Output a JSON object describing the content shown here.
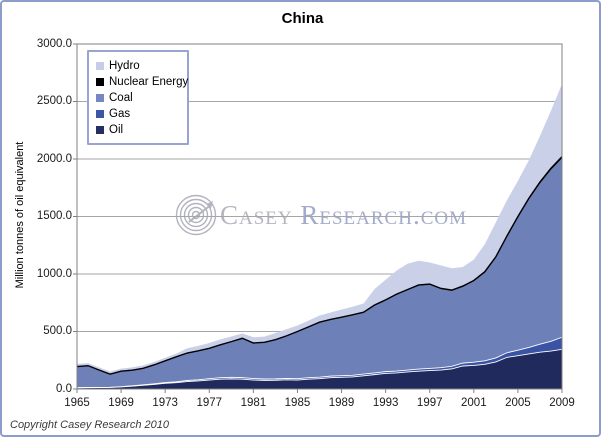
{
  "figure": {
    "title": "China",
    "y_axis_title": "Million tonnes of oil equivalent",
    "copyright": "Copyright Casey Research 2010",
    "watermark": {
      "brand_first": "Casey",
      "brand_rest": "Research.com"
    },
    "border_color": "#8e9cca"
  },
  "chart_data": {
    "type": "area",
    "stacked": true,
    "title": "China",
    "xlabel": "",
    "ylabel": "Million tonnes of oil equivalent",
    "ylim": [
      0,
      3000
    ],
    "ytick_step": 500,
    "ytick_labels": [
      "3000.0",
      "2500.0",
      "2000.0",
      "1500.0",
      "1000.0",
      "500.0",
      "0.0"
    ],
    "xtick_labels": [
      "1965",
      "1969",
      "1973",
      "1977",
      "1981",
      "1985",
      "1989",
      "1993",
      "1997",
      "2001",
      "2005",
      "2009"
    ],
    "x_range": [
      1965,
      2009
    ],
    "grid": "horizontal",
    "gridline_color": "#a6a6a6",
    "plot_border_color": "#808080",
    "legend_position": "top-left-inside",
    "x": [
      1965,
      1966,
      1967,
      1968,
      1969,
      1970,
      1971,
      1972,
      1973,
      1974,
      1975,
      1976,
      1977,
      1978,
      1979,
      1980,
      1981,
      1982,
      1983,
      1984,
      1985,
      1986,
      1987,
      1988,
      1989,
      1990,
      1991,
      1992,
      1993,
      1994,
      1995,
      1996,
      1997,
      1998,
      1999,
      2000,
      2001,
      2002,
      2003,
      2004,
      2005,
      2006,
      2007,
      2008,
      2009
    ],
    "series": [
      {
        "name": "Oil",
        "color": "#202a5c",
        "values": [
          10,
          12,
          13,
          14,
          18,
          25,
          32,
          40,
          50,
          55,
          65,
          70,
          78,
          85,
          88,
          85,
          78,
          75,
          76,
          80,
          78,
          85,
          90,
          98,
          102,
          105,
          115,
          125,
          135,
          140,
          148,
          155,
          160,
          165,
          175,
          200,
          205,
          215,
          235,
          275,
          290,
          305,
          320,
          330,
          345
        ]
      },
      {
        "name": "Gas",
        "color": "#3a53a4",
        "values": [
          1,
          1,
          1,
          1,
          2,
          3,
          4,
          5,
          6,
          7,
          9,
          10,
          12,
          13,
          14,
          14,
          13,
          12,
          12,
          12,
          12,
          13,
          13,
          14,
          14,
          14,
          15,
          15,
          16,
          16,
          17,
          18,
          19,
          20,
          22,
          25,
          28,
          30,
          35,
          40,
          47,
          56,
          70,
          85,
          105
        ]
      },
      {
        "name": "Coal",
        "color": "#6e80b8",
        "values": [
          184,
          190,
          151,
          114,
          135,
          136,
          144,
          165,
          189,
          218,
          239,
          252,
          264,
          286,
          310,
          342,
          309,
          319,
          341,
          370,
          410,
          442,
          478,
          493,
          508,
          526,
          538,
          590,
          624,
          665,
          695,
          726,
          727,
          683,
          656,
          662,
          703,
          766,
          870,
          1003,
          1151,
          1286,
          1396,
          1490,
          1555
        ]
      },
      {
        "name": "Nuclear Energy",
        "color": "#000000",
        "values": [
          0,
          0,
          0,
          0,
          0,
          0,
          0,
          0,
          0,
          0,
          0,
          0,
          0,
          0,
          0,
          0,
          0,
          0,
          0,
          0,
          0,
          0,
          0,
          0,
          0,
          0,
          0,
          0,
          0,
          4,
          5,
          6,
          6,
          7,
          7,
          8,
          8,
          9,
          10,
          12,
          12,
          13,
          14,
          15,
          16
        ]
      },
      {
        "name": "Hydro",
        "color": "#c9d0e8",
        "values": [
          23,
          22,
          23,
          23,
          22,
          24,
          25,
          25,
          27,
          28,
          41,
          43,
          46,
          48,
          44,
          43,
          50,
          49,
          58,
          58,
          52,
          55,
          58,
          60,
          67,
          70,
          75,
          140,
          175,
          205,
          225,
          210,
          188,
          200,
          190,
          166,
          181,
          240,
          300,
          310,
          310,
          330,
          400,
          500,
          631
        ]
      }
    ],
    "legend_entries": [
      {
        "name": "Hydro",
        "color": "#c5cde7"
      },
      {
        "name": "Nuclear Energy",
        "color": "#000000"
      },
      {
        "name": "Coal",
        "color": "#7787c1"
      },
      {
        "name": "Gas",
        "color": "#3d56a6"
      },
      {
        "name": "Oil",
        "color": "#24305f"
      }
    ]
  }
}
